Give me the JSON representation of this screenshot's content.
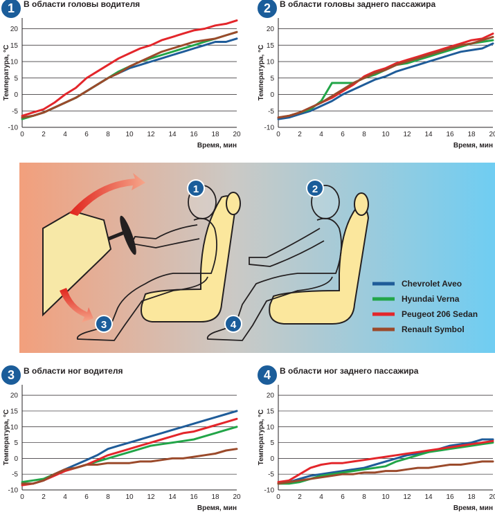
{
  "axes": {
    "xlabel": "Время, мин",
    "ylabel": "Температура, °С"
  },
  "colors": {
    "Chevrolet Aveo": "#1f5c99",
    "Hyundai Verna": "#22a548",
    "Peugeot 206 Sedan": "#e3262b",
    "Renault Symbol": "#9b4a2b",
    "badge": "#1b5d9a"
  },
  "legend": [
    "Chevrolet Aveo",
    "Hyundai Verna",
    "Peugeot 206 Sedan",
    "Renault Symbol"
  ],
  "illustration": {
    "badges": [
      "1",
      "2",
      "3",
      "4"
    ],
    "description_icons": [
      "dashboard-icon",
      "steering-wheel-icon",
      "heat-flow-arrow-icon",
      "seat-icon",
      "person-silhouette-icon"
    ]
  },
  "chart_data": [
    {
      "type": "line",
      "badge": "1",
      "title": "В области головы водителя",
      "xlabel": "Время, мин",
      "ylabel": "Температура, °С",
      "xlim": [
        0,
        20
      ],
      "ylim": [
        -10,
        22
      ],
      "xticks": [
        0,
        2,
        4,
        6,
        8,
        10,
        12,
        14,
        16,
        18,
        20
      ],
      "yticks": [
        -10,
        -5,
        0,
        5,
        10,
        15,
        20
      ],
      "x": [
        0,
        1,
        2,
        3,
        4,
        5,
        6,
        7,
        8,
        9,
        10,
        11,
        12,
        13,
        14,
        15,
        16,
        17,
        18,
        19,
        20
      ],
      "series": [
        {
          "name": "Chevrolet Aveo",
          "values": [
            -7,
            -6.5,
            -5.5,
            -4,
            -2.5,
            -1,
            1,
            3,
            5,
            6.5,
            8,
            9,
            10,
            11,
            12,
            13,
            14,
            15,
            16,
            16,
            17
          ]
        },
        {
          "name": "Hyundai Verna",
          "values": [
            -7.5,
            -6.5,
            -5.5,
            -4,
            -2.5,
            -1,
            1,
            3,
            5,
            7,
            8.5,
            10,
            11,
            12,
            13,
            14,
            15,
            16,
            17,
            18,
            19
          ]
        },
        {
          "name": "Peugeot 206 Sedan",
          "values": [
            -6.5,
            -5.5,
            -4.5,
            -2.5,
            0,
            2,
            5,
            7,
            9,
            11,
            12.5,
            14,
            15,
            16.5,
            17.5,
            18.5,
            19.5,
            20,
            21,
            21.5,
            22.5
          ]
        },
        {
          "name": "Renault Symbol",
          "values": [
            -7,
            -6.5,
            -5.5,
            -4,
            -2.5,
            -1,
            1,
            3,
            5,
            6.5,
            8.5,
            10,
            11.5,
            13,
            14,
            15,
            16,
            16.5,
            17,
            18,
            19
          ]
        }
      ]
    },
    {
      "type": "line",
      "badge": "2",
      "title": "В области головы заднего пассажира",
      "xlabel": "Время, мин",
      "ylabel": "Температура, °С",
      "xlim": [
        0,
        20
      ],
      "ylim": [
        -10,
        22
      ],
      "xticks": [
        0,
        2,
        4,
        6,
        8,
        10,
        12,
        14,
        16,
        18,
        20
      ],
      "yticks": [
        -10,
        -5,
        0,
        5,
        10,
        15,
        20
      ],
      "x": [
        0,
        1,
        2,
        3,
        4,
        5,
        6,
        7,
        8,
        9,
        10,
        11,
        12,
        13,
        14,
        15,
        16,
        17,
        18,
        19,
        20
      ],
      "series": [
        {
          "name": "Chevrolet Aveo",
          "values": [
            -7.5,
            -7,
            -6,
            -5,
            -3.5,
            -2,
            0,
            1.5,
            3,
            4.5,
            5.5,
            7,
            8,
            9,
            10,
            11,
            12,
            13,
            13.5,
            14,
            15.5
          ]
        },
        {
          "name": "Hyundai Verna",
          "values": [
            -7,
            -6.5,
            -5.5,
            -4.5,
            -2,
            3.5,
            3.5,
            3.5,
            5,
            6,
            7.5,
            9,
            9.5,
            10.5,
            11.5,
            12.5,
            13.5,
            14.5,
            15.5,
            16,
            16.5
          ]
        },
        {
          "name": "Peugeot 206 Sedan",
          "values": [
            -7,
            -6.5,
            -5.5,
            -4,
            -2.5,
            -1,
            1,
            3,
            5.5,
            7,
            8,
            9.5,
            10.5,
            11.5,
            12.5,
            13.5,
            14.5,
            15.5,
            16.5,
            17,
            18.5
          ]
        },
        {
          "name": "Renault Symbol",
          "values": [
            -7,
            -6.5,
            -5.5,
            -4,
            -2.5,
            -0.5,
            1.5,
            3.5,
            5,
            6.5,
            7.5,
            9,
            10,
            11,
            12,
            13,
            14,
            15,
            15.5,
            16.5,
            17.5
          ]
        }
      ]
    },
    {
      "type": "line",
      "badge": "3",
      "title": "В области ног водителя",
      "xlabel": "Время, мин",
      "ylabel": "Температура, °С",
      "xlim": [
        0,
        20
      ],
      "ylim": [
        -10,
        22
      ],
      "xticks": [
        0,
        2,
        4,
        6,
        8,
        10,
        12,
        14,
        16,
        18,
        20
      ],
      "yticks": [
        -10,
        -5,
        0,
        5,
        10,
        15,
        20
      ],
      "x": [
        0,
        1,
        2,
        3,
        4,
        5,
        6,
        7,
        8,
        9,
        10,
        11,
        12,
        13,
        14,
        15,
        16,
        17,
        18,
        19,
        20
      ],
      "series": [
        {
          "name": "Chevrolet Aveo",
          "values": [
            -8,
            -8,
            -7,
            -5,
            -3.5,
            -2,
            -0.5,
            1,
            3,
            4,
            5,
            6,
            7,
            8,
            9,
            10,
            11,
            12,
            13,
            14,
            15
          ]
        },
        {
          "name": "Hyundai Verna",
          "values": [
            -7.5,
            -7,
            -6.5,
            -5,
            -4,
            -3,
            -2,
            -1,
            0,
            1,
            2,
            3,
            4,
            4.5,
            5,
            5.5,
            6,
            7,
            8,
            9,
            10
          ]
        },
        {
          "name": "Peugeot 206 Sedan",
          "values": [
            -8.5,
            -8,
            -7,
            -5.5,
            -4,
            -3,
            -2,
            -0.5,
            1,
            2,
            3,
            4,
            5,
            6,
            7,
            8,
            8.5,
            9.5,
            10.5,
            11.5,
            12.5
          ]
        },
        {
          "name": "Renault Symbol",
          "values": [
            -8,
            -8,
            -7,
            -5,
            -3.5,
            -3,
            -2,
            -2,
            -1.5,
            -1.5,
            -1.5,
            -1,
            -1,
            -0.5,
            0,
            0,
            0.5,
            1,
            1.5,
            2.5,
            3
          ]
        }
      ]
    },
    {
      "type": "line",
      "badge": "4",
      "title": "В области ног заднего пассажира",
      "xlabel": "Время, мин",
      "ylabel": "Температура, °С",
      "xlim": [
        0,
        20
      ],
      "ylim": [
        -10,
        22
      ],
      "xticks": [
        0,
        2,
        4,
        6,
        8,
        10,
        12,
        14,
        16,
        18,
        20
      ],
      "yticks": [
        -10,
        -5,
        0,
        5,
        10,
        15,
        20
      ],
      "x": [
        0,
        1,
        2,
        3,
        4,
        5,
        6,
        7,
        8,
        9,
        10,
        11,
        12,
        13,
        14,
        15,
        16,
        17,
        18,
        19,
        20
      ],
      "series": [
        {
          "name": "Chevrolet Aveo",
          "values": [
            -8,
            -7.5,
            -6.5,
            -5.5,
            -5,
            -4.5,
            -4,
            -3.5,
            -3,
            -2,
            -1,
            0,
            1,
            1.5,
            2,
            3,
            4,
            4.5,
            5,
            6,
            6
          ]
        },
        {
          "name": "Hyundai Verna",
          "values": [
            -8,
            -8,
            -7.5,
            -6.5,
            -5.5,
            -5,
            -4.5,
            -4,
            -3.5,
            -3,
            -2.5,
            -1,
            0,
            1,
            2,
            2.5,
            3,
            3.5,
            4,
            4.5,
            5
          ]
        },
        {
          "name": "Peugeot 206 Sedan",
          "values": [
            -7.5,
            -7,
            -5,
            -3,
            -2,
            -1.5,
            -1.5,
            -1,
            -0.5,
            0,
            0.5,
            1,
            1.5,
            2,
            2.5,
            3,
            3.5,
            4,
            4.5,
            5,
            5.5
          ]
        },
        {
          "name": "Renault Symbol",
          "values": [
            -8,
            -7.5,
            -7,
            -6.5,
            -6,
            -5.5,
            -5,
            -5,
            -4.5,
            -4.5,
            -4,
            -4,
            -3.5,
            -3,
            -3,
            -2.5,
            -2,
            -2,
            -1.5,
            -1,
            -1
          ]
        }
      ]
    }
  ]
}
